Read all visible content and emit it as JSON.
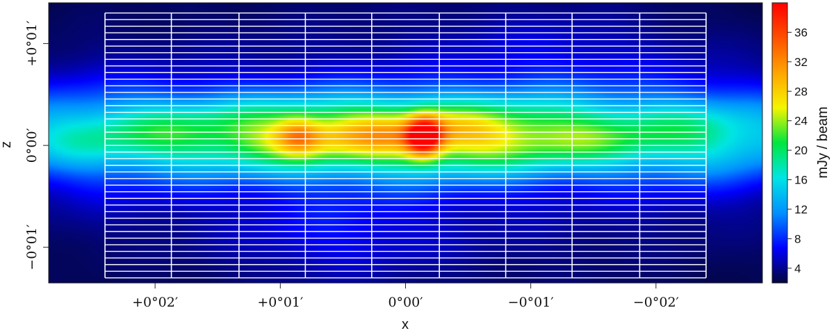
{
  "chart_data": {
    "type": "heatmap",
    "title": "",
    "xlabel": "x",
    "ylabel": "z",
    "x_ticks": [
      "+0°02′",
      "+0°01′",
      "0°00′",
      "−0°01′",
      "−0°02′"
    ],
    "x_tick_values_arcmin": [
      2,
      1,
      0,
      -1,
      -2
    ],
    "xlim_arcmin": [
      2.85,
      -2.85
    ],
    "z_ticks": [
      "+0°01′",
      "0°00′",
      "−0°01′"
    ],
    "z_tick_values_arcmin": [
      1,
      0,
      -1
    ],
    "zlim_arcmin": [
      -1.35,
      1.4
    ],
    "grid": {
      "x_edges_arcmin": [
        2.4,
        1.87,
        1.33,
        0.8,
        0.27,
        -0.27,
        -0.8,
        -1.33,
        -1.87,
        -2.4
      ],
      "z_rows": 40,
      "zlim_arcmin": [
        -1.3,
        1.3
      ]
    },
    "colorbar": {
      "label": "mJy / beam",
      "ticks": [
        4,
        8,
        12,
        16,
        20,
        24,
        28,
        32,
        36
      ],
      "tick_labels": [
        "4",
        "8",
        "12",
        "16",
        "20",
        "24",
        "28",
        "32",
        "36"
      ],
      "range": [
        2,
        40
      ],
      "colormap": [
        "#04063c",
        "#0000ff",
        "#0090ff",
        "#00e5e5",
        "#00e640",
        "#f5f500",
        "#ffa500",
        "#ff5000",
        "#ff0000"
      ]
    },
    "emission_components": [
      {
        "x": 0,
        "z": 0.1,
        "sx": 2.6,
        "sz": 0.28,
        "amp": 17
      },
      {
        "x": 0,
        "z": 0.1,
        "sx": 1.0,
        "sz": 0.22,
        "amp": 7
      },
      {
        "x": 0,
        "z": 0.0,
        "sx": 2.2,
        "sz": 0.9,
        "amp": 4
      },
      {
        "x": 2.45,
        "z": 0.1,
        "sx": 0.55,
        "sz": 0.45,
        "amp": 3
      },
      {
        "x": -2.45,
        "z": 0.1,
        "sx": 0.55,
        "sz": 0.45,
        "amp": 3
      },
      {
        "x": -0.15,
        "z": 0.08,
        "sx": 0.1,
        "sz": 0.14,
        "amp": 19
      },
      {
        "x": 0.85,
        "z": 0.1,
        "sx": 0.12,
        "sz": 0.13,
        "amp": 8
      },
      {
        "x": 0.55,
        "z": -0.9,
        "sx": 0.55,
        "sz": 0.3,
        "amp": 2.5
      },
      {
        "x": -1.2,
        "z": 0.9,
        "sx": 0.6,
        "sz": 0.3,
        "amp": 2.2
      }
    ]
  }
}
